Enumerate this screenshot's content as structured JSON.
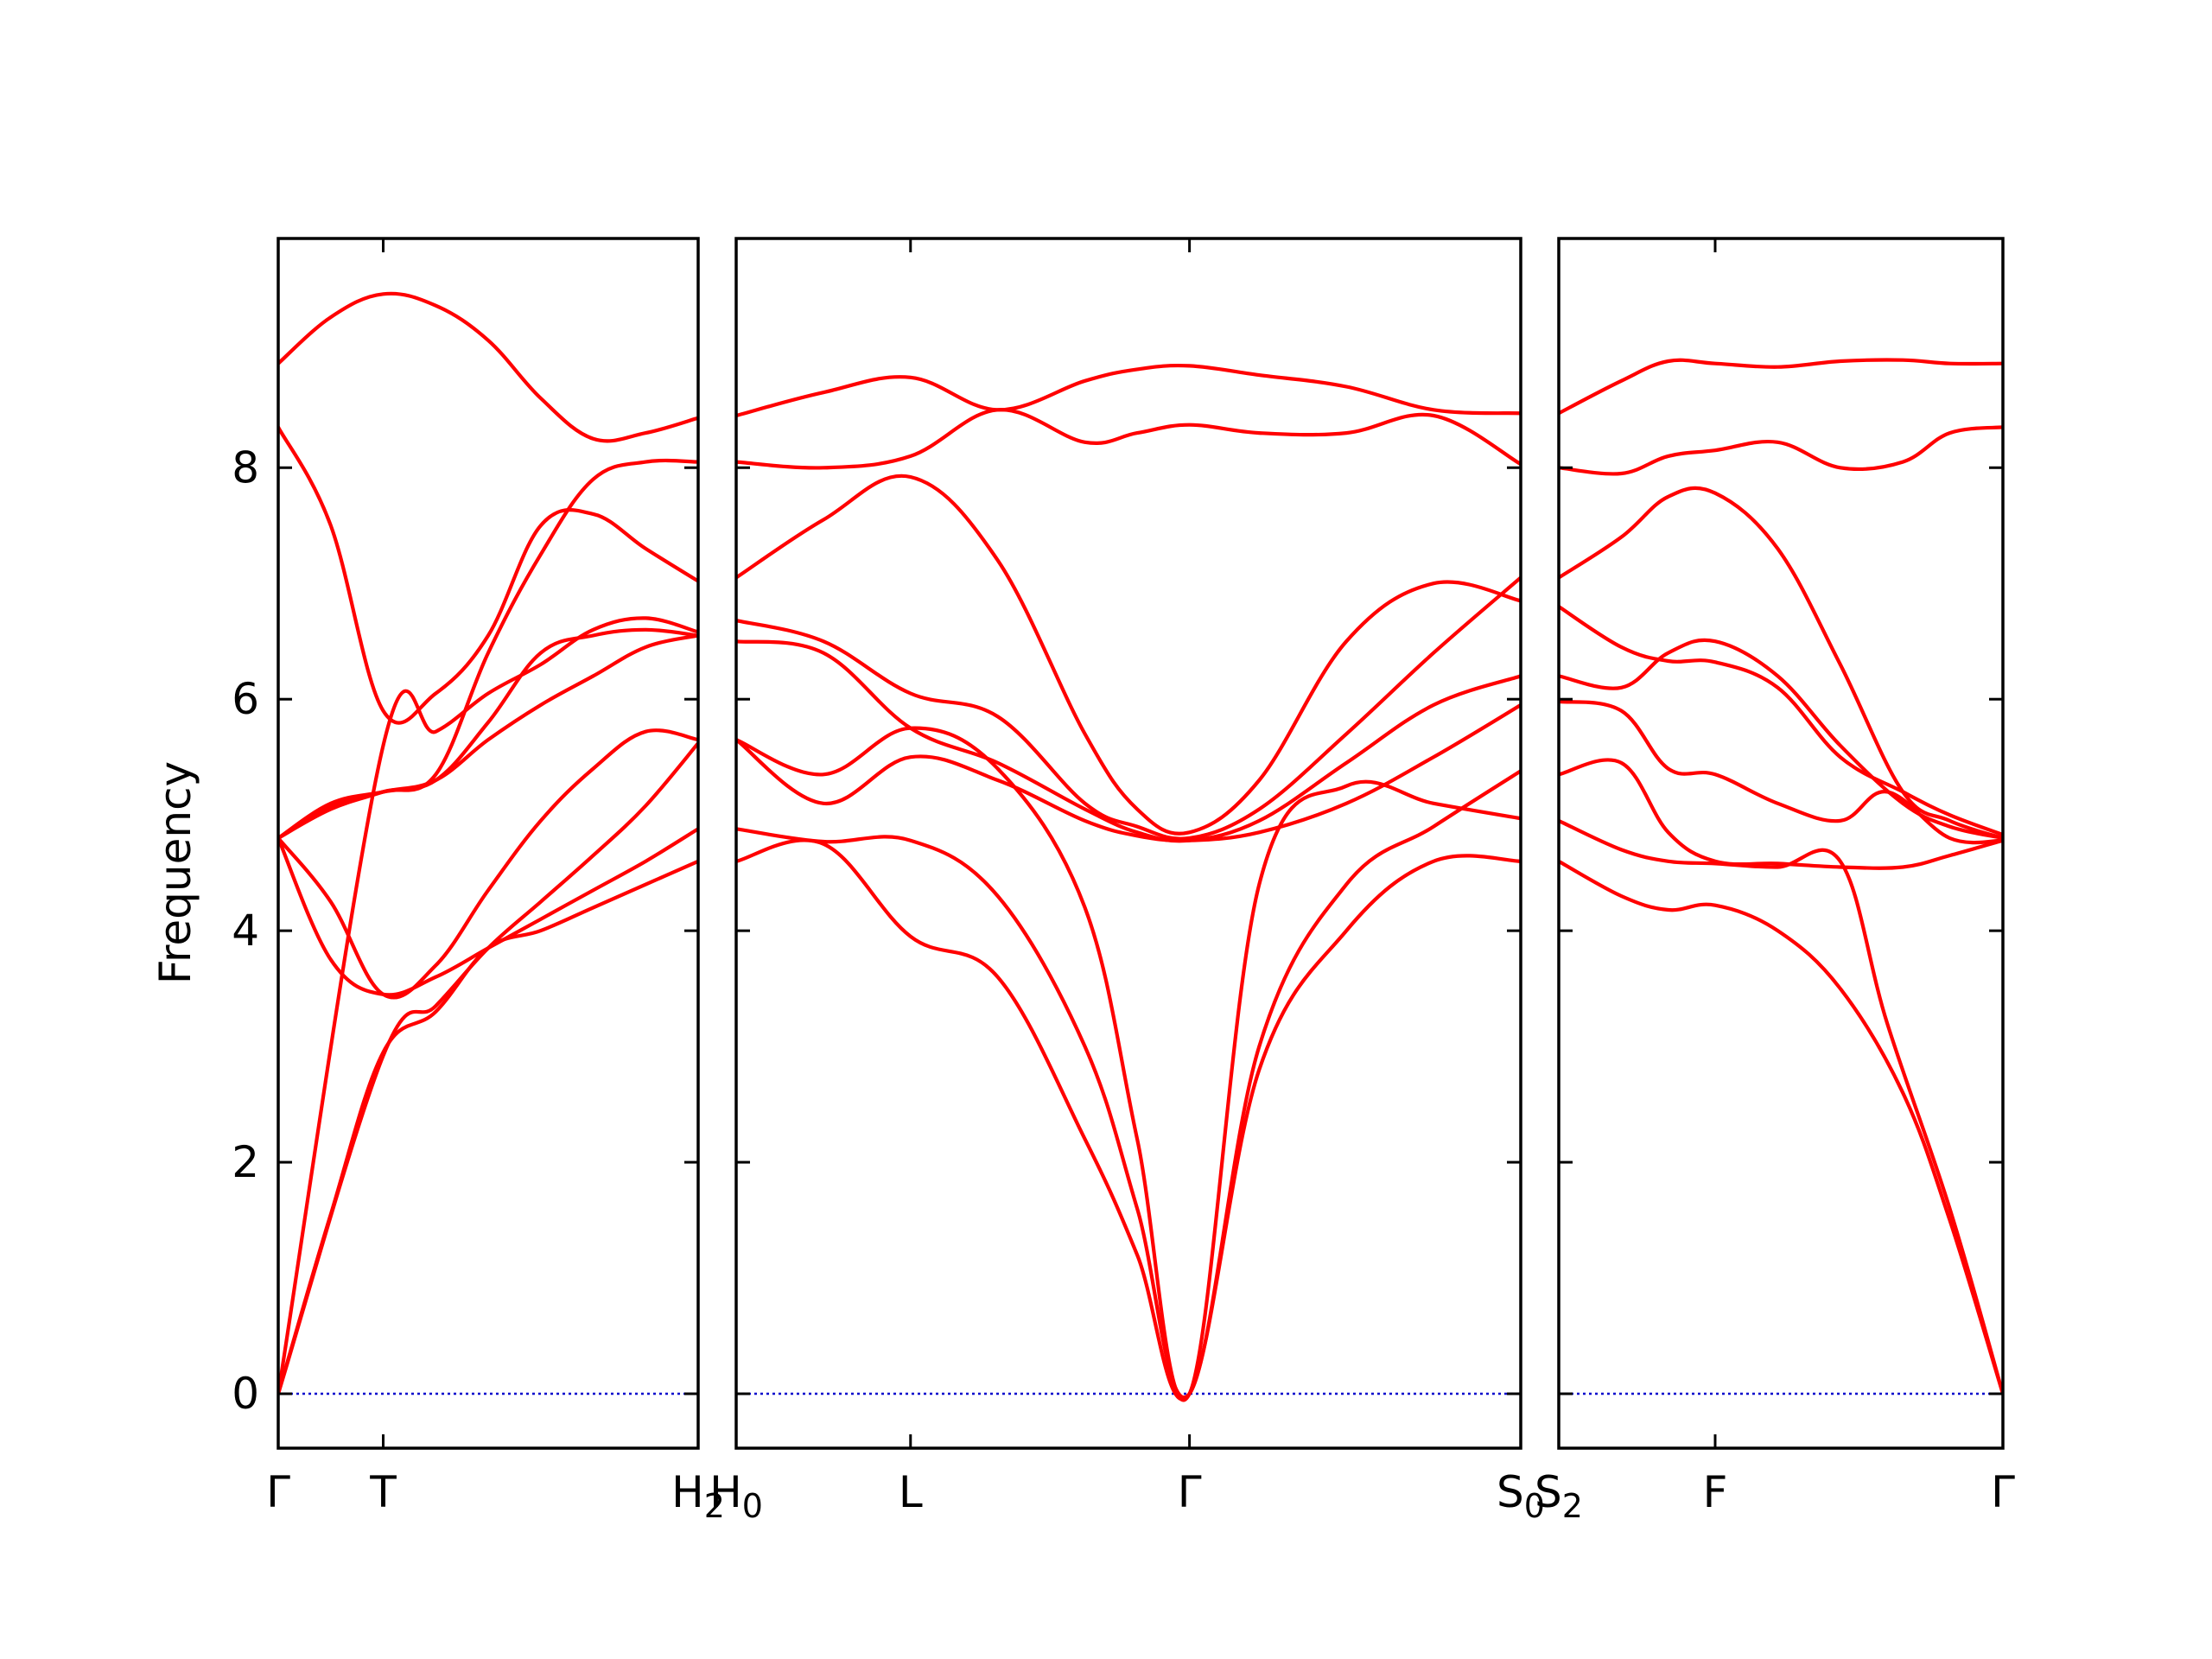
{
  "chart_data": {
    "type": "line",
    "ylabel": "Frequency",
    "ylim": [
      -0.47,
      9.98
    ],
    "yticks": [
      0,
      2,
      4,
      6,
      8
    ],
    "ytick_labels": [
      "0",
      "2",
      "4",
      "6",
      "8"
    ],
    "grid": false,
    "colors": {
      "band": "#ff0000",
      "zero_line": "#0000cc",
      "frame": "#000000"
    },
    "panels": [
      {
        "xlim": [
          0,
          4
        ],
        "ticks": [
          {
            "x": 0,
            "label": "Γ",
            "sub": ""
          },
          {
            "x": 1,
            "label": "T",
            "sub": ""
          },
          {
            "x": 4,
            "label": "H",
            "sub": "2"
          }
        ],
        "series": [
          {
            "x": [
              0,
              1,
              1.5,
              2,
              2.5,
              3,
              3.5,
              4
            ],
            "values": [
              0,
              2.92,
              3.35,
              3.85,
              4.25,
              4.65,
              5.08,
              5.62
            ]
          },
          {
            "x": [
              0,
              1,
              1.5,
              2,
              2.5,
              3,
              3.5,
              4
            ],
            "values": [
              0,
              5.6,
              5.72,
              6.05,
              6.3,
              6.6,
              6.7,
              6.58
            ]
          },
          {
            "x": [
              0,
              0.5,
              1,
              1.5,
              2,
              2.5,
              3,
              3.5,
              4
            ],
            "values": [
              0,
              1.55,
              2.95,
              3.3,
              3.85,
              4.0,
              4.2,
              4.4,
              4.6
            ]
          },
          {
            "x": [
              0,
              0.5,
              1,
              1.5,
              2,
              2.5,
              3,
              3.5,
              4
            ],
            "values": [
              4.8,
              4.25,
              3.45,
              3.7,
              4.35,
              4.95,
              5.4,
              5.72,
              5.65
            ]
          },
          {
            "x": [
              0,
              0.5,
              1,
              1.5,
              2,
              2.5,
              3,
              3.5,
              4
            ],
            "values": [
              4.8,
              5.08,
              5.2,
              5.3,
              5.65,
              5.95,
              6.2,
              6.45,
              6.55
            ]
          },
          {
            "x": [
              0,
              0.5,
              1,
              1.5,
              2,
              2.5,
              3,
              3.5,
              4
            ],
            "values": [
              4.8,
              3.75,
              3.45,
              3.6,
              3.85,
              4.1,
              4.35,
              4.6,
              4.88
            ]
          },
          {
            "x": [
              0,
              0.5,
              1,
              1.5,
              2,
              2.5,
              3,
              3.5,
              4
            ],
            "values": [
              8.35,
              7.5,
              5.9,
              6.05,
              6.55,
              7.5,
              7.6,
              7.3,
              7.02
            ]
          },
          {
            "x": [
              0,
              0.5,
              1,
              1.5,
              2,
              2.5,
              3,
              3.5,
              4
            ],
            "values": [
              8.9,
              9.3,
              9.5,
              9.4,
              9.1,
              8.6,
              8.25,
              8.3,
              8.43
            ]
          },
          {
            "x": [
              0,
              0.5,
              1,
              1.5,
              2,
              2.5,
              3,
              3.5,
              4
            ],
            "values": [
              4.8,
              5.1,
              5.2,
              5.3,
              5.8,
              6.4,
              6.55,
              6.6,
              6.55
            ]
          },
          {
            "x": [
              0,
              0.5,
              1,
              1.5,
              2,
              2.5,
              3,
              3.5,
              4
            ],
            "values": [
              4.8,
              5.05,
              5.2,
              5.35,
              6.4,
              7.25,
              7.9,
              8.05,
              8.05
            ]
          }
        ]
      },
      {
        "xlim": [
          0,
          4.5
        ],
        "ticks": [
          {
            "x": 0,
            "label": "H",
            "sub": "0"
          },
          {
            "x": 1,
            "label": "L",
            "sub": ""
          },
          {
            "x": 2.6,
            "label": "Γ",
            "sub": ""
          },
          {
            "x": 4.5,
            "label": "S",
            "sub": "0"
          }
        ],
        "series": [
          {
            "x": [
              0,
              0.5,
              1,
              1.5,
              2,
              2.3,
              2.6,
              3,
              3.5,
              4,
              4.5
            ],
            "values": [
              4.6,
              4.75,
              3.95,
              3.6,
              2.2,
              1.2,
              0,
              2.8,
              4.0,
              4.6,
              4.6
            ]
          },
          {
            "x": [
              0,
              0.5,
              1,
              1.5,
              2,
              2.3,
              2.6,
              3,
              3.5,
              4,
              4.5
            ],
            "values": [
              4.88,
              4.77,
              4.78,
              4.3,
              3.0,
              1.6,
              0,
              3.0,
              4.4,
              4.9,
              5.38
            ]
          },
          {
            "x": [
              0,
              0.5,
              1,
              1.5,
              2,
              2.3,
              2.6,
              3,
              3.5,
              4,
              4.5
            ],
            "values": [
              5.65,
              5.35,
              5.75,
              5.4,
              4.2,
              2.2,
              0,
              4.4,
              5.25,
              5.1,
              4.97
            ]
          },
          {
            "x": [
              0,
              0.5,
              1,
              1.5,
              2,
              2.3,
              2.6,
              3,
              3.5,
              4,
              4.5
            ],
            "values": [
              5.65,
              5.1,
              5.5,
              5.3,
              4.95,
              4.82,
              4.78,
              4.85,
              5.1,
              5.5,
              5.95
            ]
          },
          {
            "x": [
              0,
              0.5,
              1,
              1.5,
              2,
              2.3,
              2.6,
              3,
              3.5,
              4,
              4.5
            ],
            "values": [
              6.5,
              6.4,
              5.75,
              5.45,
              5.05,
              4.85,
              4.78,
              4.95,
              5.45,
              5.95,
              6.2
            ]
          },
          {
            "x": [
              0,
              0.5,
              1,
              1.5,
              2,
              2.3,
              2.6,
              3,
              3.5,
              4,
              4.5
            ],
            "values": [
              6.68,
              6.5,
              6.05,
              5.85,
              5.1,
              4.9,
              4.8,
              5.05,
              5.7,
              6.4,
              7.05
            ]
          },
          {
            "x": [
              0,
              0.5,
              1,
              1.5,
              2,
              2.3,
              2.6,
              3,
              3.5,
              4,
              4.5
            ],
            "values": [
              7.05,
              7.55,
              7.92,
              7.2,
              5.7,
              5.05,
              4.85,
              5.3,
              6.5,
              7.0,
              6.85
            ]
          },
          {
            "x": [
              0,
              0.5,
              1,
              1.5,
              2,
              2.3,
              2.6,
              3,
              3.5,
              4,
              4.5
            ],
            "values": [
              8.05,
              8.0,
              8.1,
              8.5,
              8.22,
              8.3,
              8.37,
              8.3,
              8.3,
              8.45,
              8.03
            ]
          },
          {
            "x": [
              0,
              0.5,
              1,
              1.5,
              2,
              2.3,
              2.6,
              3,
              3.5,
              4,
              4.5
            ],
            "values": [
              8.45,
              8.65,
              8.78,
              8.5,
              8.75,
              8.85,
              8.88,
              8.8,
              8.7,
              8.5,
              8.47
            ]
          }
        ]
      },
      {
        "xlim": [
          0,
          2.84
        ],
        "ticks": [
          {
            "x": 0,
            "label": "S",
            "sub": "2"
          },
          {
            "x": 1,
            "label": "F",
            "sub": ""
          },
          {
            "x": 2.84,
            "label": "Γ",
            "sub": ""
          }
        ],
        "series": [
          {
            "x": [
              0,
              0.4,
              0.7,
              1,
              1.4,
              1.8,
              2.2,
              2.5,
              2.84
            ],
            "values": [
              4.6,
              4.3,
              4.18,
              4.22,
              4.0,
              3.5,
              2.6,
              1.5,
              0
            ]
          },
          {
            "x": [
              0,
              0.4,
              0.7,
              1,
              1.4,
              1.8,
              2.1,
              2.5,
              2.84
            ],
            "values": [
              4.95,
              4.7,
              4.6,
              4.58,
              4.55,
              4.6,
              3.2,
              1.6,
              0
            ]
          },
          {
            "x": [
              0,
              0.4,
              0.7,
              1,
              1.4,
              1.8,
              2.2,
              2.5,
              2.84
            ],
            "values": [
              5.35,
              5.45,
              4.85,
              4.6,
              4.58,
              4.55,
              4.55,
              4.65,
              4.78
            ]
          },
          {
            "x": [
              0,
              0.4,
              0.7,
              1,
              1.4,
              1.8,
              2.1,
              2.5,
              2.84
            ],
            "values": [
              5.98,
              5.9,
              5.4,
              5.35,
              5.1,
              4.95,
              5.2,
              4.8,
              4.78
            ]
          },
          {
            "x": [
              0,
              0.4,
              0.7,
              1,
              1.4,
              1.8,
              2.2,
              2.5,
              2.84
            ],
            "values": [
              6.2,
              6.1,
              6.4,
              6.5,
              6.2,
              5.6,
              5.1,
              4.9,
              4.8
            ]
          },
          {
            "x": [
              0,
              0.4,
              0.7,
              1,
              1.4,
              1.8,
              2.2,
              2.5,
              2.84
            ],
            "values": [
              6.8,
              6.45,
              6.33,
              6.32,
              6.1,
              5.5,
              5.2,
              5.0,
              4.83
            ]
          },
          {
            "x": [
              0,
              0.4,
              0.7,
              1,
              1.4,
              1.8,
              2.2,
              2.5,
              2.84
            ],
            "values": [
              7.05,
              7.4,
              7.75,
              7.78,
              7.3,
              6.3,
              5.2,
              4.95,
              4.8
            ]
          },
          {
            "x": [
              0,
              0.4,
              0.7,
              1,
              1.4,
              1.8,
              2.2,
              2.5,
              2.84
            ],
            "values": [
              8.0,
              7.95,
              8.1,
              8.15,
              8.22,
              8.0,
              8.05,
              8.3,
              8.35
            ]
          },
          {
            "x": [
              0,
              0.4,
              0.7,
              1,
              1.4,
              1.8,
              2.2,
              2.5,
              2.84
            ],
            "values": [
              8.47,
              8.75,
              8.92,
              8.9,
              8.87,
              8.92,
              8.93,
              8.9,
              8.9
            ]
          }
        ]
      }
    ]
  }
}
